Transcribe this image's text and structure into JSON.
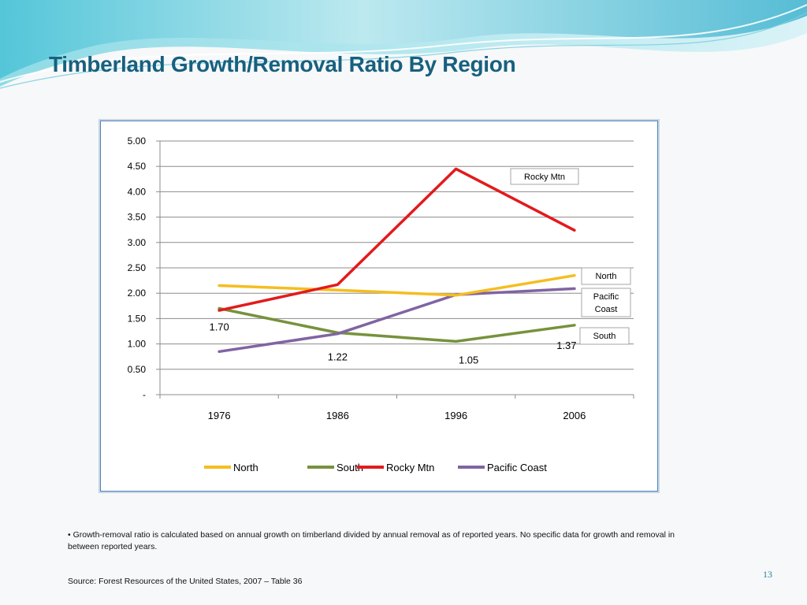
{
  "slide": {
    "title": "Timberland Growth/Removal Ratio By Region",
    "note": "• Growth-removal ratio is calculated based on annual growth on timberland divided by annual removal as of reported years.  No specific data for growth and removal in between reported years.",
    "source": "Source: Forest Resources of the United States, 2007 – Table 36",
    "page_number": "13"
  },
  "colors": {
    "title": "#17607f",
    "frame": "#4f81bd",
    "grid": "#8c8c8c"
  },
  "chart_data": {
    "type": "line",
    "categories": [
      "1976",
      "1986",
      "1996",
      "2006"
    ],
    "ylim": [
      0,
      5
    ],
    "yticks": [
      "-",
      "0.50",
      "1.00",
      "1.50",
      "2.00",
      "2.50",
      "3.00",
      "3.50",
      "4.00",
      "4.50",
      "5.00"
    ],
    "grid": true,
    "legend_position": "bottom",
    "series": [
      {
        "name": "North",
        "color": "#f5bd1f",
        "values": [
          2.15,
          2.06,
          1.96,
          2.35
        ]
      },
      {
        "name": "South",
        "color": "#76923c",
        "values": [
          1.7,
          1.22,
          1.05,
          1.37
        ]
      },
      {
        "name": "Rocky Mtn",
        "color": "#e31a1c",
        "values": [
          1.66,
          2.17,
          4.45,
          3.24
        ]
      },
      {
        "name": "Pacific Coast",
        "color": "#8064a2",
        "values": [
          0.85,
          1.2,
          1.97,
          2.09
        ]
      }
    ],
    "data_labels": [
      {
        "series": "South",
        "index": 0,
        "text": "1.70"
      },
      {
        "series": "South",
        "index": 1,
        "text": "1.22"
      },
      {
        "series": "South",
        "index": 2,
        "text": "1.05"
      },
      {
        "series": "South",
        "index": 3,
        "text": "1.37"
      }
    ],
    "callouts": [
      {
        "text": "Rocky Mtn"
      },
      {
        "text": "North"
      },
      {
        "text": "Pacific\nCoast"
      },
      {
        "text": "South"
      }
    ]
  }
}
